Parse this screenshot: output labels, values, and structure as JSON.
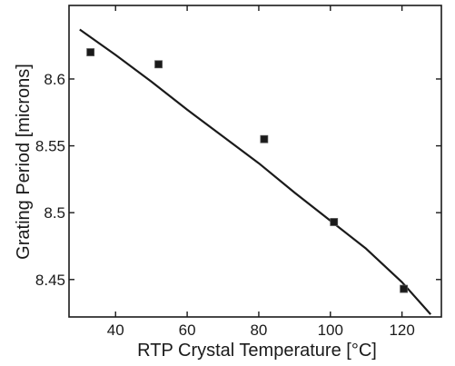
{
  "chart_data": {
    "type": "scatter",
    "xlabel": "RTP Crystal Temperature [°C]",
    "ylabel": "Grating Period [microns]",
    "xlim": [
      27,
      131
    ],
    "ylim": [
      8.422,
      8.655
    ],
    "x_ticks": [
      {
        "value": 40,
        "label": "40"
      },
      {
        "value": 60,
        "label": "60"
      },
      {
        "value": 80,
        "label": "80"
      },
      {
        "value": 100,
        "label": "100"
      },
      {
        "value": 120,
        "label": "120"
      }
    ],
    "y_ticks": [
      {
        "value": 8.45,
        "label": "8.45"
      },
      {
        "value": 8.5,
        "label": "8.5"
      },
      {
        "value": 8.55,
        "label": "8.55"
      },
      {
        "value": 8.6,
        "label": "8.6"
      }
    ],
    "grid": false,
    "series": [
      {
        "kind": "points",
        "marker": "square",
        "color": "#1a1a1a",
        "x": [
          33,
          52,
          81.5,
          101,
          120.5
        ],
        "y": [
          8.62,
          8.611,
          8.555,
          8.493,
          8.443
        ]
      },
      {
        "kind": "line",
        "color": "#1a1a1a",
        "x": [
          30,
          40,
          50,
          60,
          70,
          80,
          90,
          100,
          110,
          120,
          128
        ],
        "y": [
          8.637,
          8.618,
          8.598,
          8.577,
          8.557,
          8.537,
          8.515,
          8.494,
          8.473,
          8.448,
          8.424
        ]
      }
    ]
  }
}
